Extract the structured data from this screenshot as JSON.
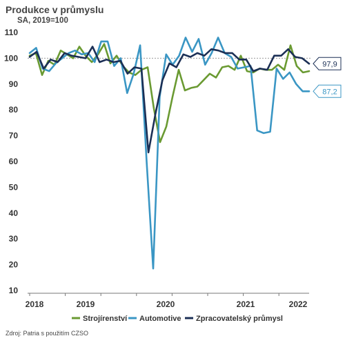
{
  "chart_data": {
    "type": "line",
    "title": "Produkce v průmyslu",
    "subtitle": "SA, 2019=100",
    "source": "Zdroj: Patria s použitím CZSO",
    "ylim": [
      10,
      110
    ],
    "yticks": [
      10,
      20,
      30,
      40,
      50,
      60,
      70,
      80,
      90,
      100,
      110
    ],
    "x_start": "2018-01",
    "x_end": "2022-06",
    "x_year_labels": [
      {
        "label": "2018",
        "month": 0
      },
      {
        "label": "2019",
        "month": 12
      },
      {
        "label": "2020",
        "month": 24
      },
      {
        "label": "2021",
        "month": 36
      },
      {
        "label": "2022",
        "month": 48
      }
    ],
    "reference_line": 100,
    "legend_position": "bottom",
    "series": [
      {
        "name": "Strojírenství",
        "color": "#6a9a32",
        "values": [
          101,
          102,
          93.5,
          99,
          97.5,
          103,
          101.5,
          100,
          104.5,
          101,
          98.5,
          101.5,
          105.5,
          98,
          101,
          97,
          94.5,
          93.5,
          95.5,
          96.5,
          80.5,
          67.5,
          73.5,
          85,
          95.5,
          87.5,
          88.5,
          89,
          91.5,
          94,
          92.5,
          96.5,
          97,
          95.5,
          101,
          95,
          94.5,
          96,
          95.5,
          95.5,
          97.5,
          95.5,
          105,
          97,
          94.5,
          95
        ]
      },
      {
        "name": "Automotive",
        "color": "#3a96c4",
        "values": [
          102,
          104,
          96,
          95,
          98,
          100,
          102,
          103,
          101.5,
          102,
          98.5,
          106.5,
          106.5,
          97,
          100,
          86.5,
          94,
          105,
          60,
          18.5,
          85,
          101.5,
          97.5,
          101,
          108,
          102.5,
          107.5,
          97.5,
          102,
          108,
          102,
          100.5,
          96,
          96.5,
          97,
          72,
          71,
          71.5,
          96,
          92,
          94.5,
          90,
          87.2,
          87.2
        ]
      },
      {
        "name": "Zpracovatelský průmysl",
        "color": "#1b2f55",
        "values": [
          100.5,
          102.5,
          96,
          99.5,
          98.5,
          102,
          101,
          100.5,
          100,
          104.5,
          98.5,
          99.5,
          98.5,
          99,
          94,
          96.5,
          96,
          63.5,
          78.5,
          91.5,
          98,
          96.5,
          101.5,
          100.5,
          102,
          101,
          103.5,
          103,
          102,
          102,
          99.5,
          99.5,
          95,
          96,
          95.5,
          101,
          101,
          103.5,
          100.5,
          100,
          97.9
        ]
      }
    ],
    "end_labels": [
      {
        "series": "Zpracovatelský průmysl",
        "value": 97.9,
        "text": "97,9"
      },
      {
        "series": "Automotive",
        "value": 87.2,
        "text": "87,2"
      }
    ]
  }
}
